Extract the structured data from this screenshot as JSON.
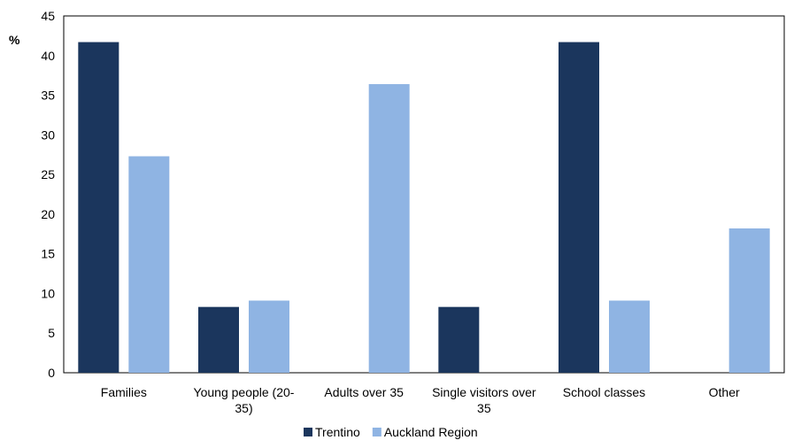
{
  "chart_data": {
    "type": "bar",
    "title": "",
    "xlabel": "",
    "ylabel": "%",
    "ylim": [
      0,
      45
    ],
    "yticks": [
      0,
      5,
      10,
      15,
      20,
      25,
      30,
      35,
      40,
      45
    ],
    "grid": false,
    "legend_position": "bottom",
    "categories": [
      [
        "Families"
      ],
      [
        "Young people (20-",
        "35)"
      ],
      [
        "Adults over 35"
      ],
      [
        "Single visitors over",
        "35"
      ],
      [
        "School classes"
      ],
      [
        "Other"
      ]
    ],
    "series": [
      {
        "name": "Trentino",
        "color": "#1b365d",
        "values": [
          41.7,
          8.3,
          0,
          8.3,
          41.7,
          0
        ]
      },
      {
        "name": "Auckland Region",
        "color": "#8fb4e3",
        "values": [
          27.3,
          9.1,
          36.4,
          0,
          9.1,
          18.2
        ]
      }
    ]
  }
}
